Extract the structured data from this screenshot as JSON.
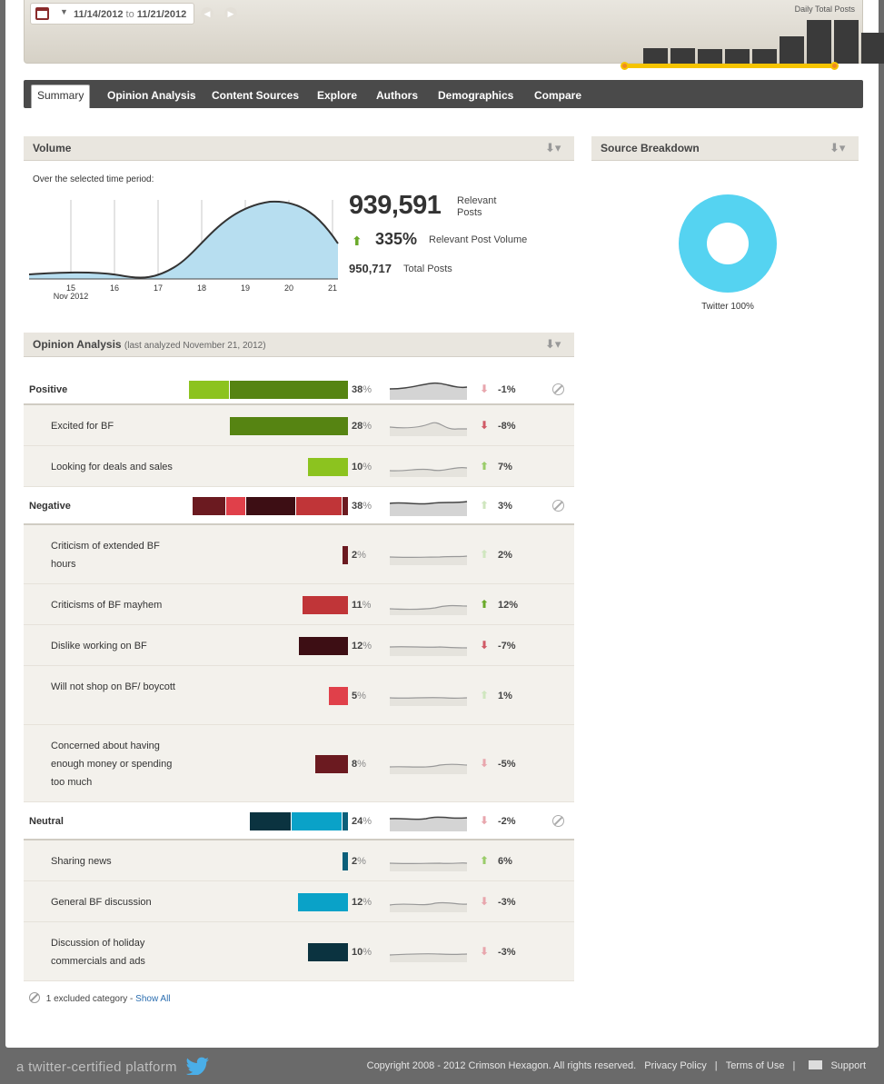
{
  "daterange": {
    "start": "11/14/2012",
    "to": "to",
    "end": "11/21/2012",
    "prev": "◀",
    "next": "▶"
  },
  "daily": {
    "label": "Daily Total Posts",
    "values": [
      16,
      16,
      15,
      15,
      15,
      29,
      46,
      46,
      33
    ]
  },
  "tabs": [
    "Summary",
    "Opinion Analysis",
    "Content Sources",
    "Explore",
    "Authors",
    "Demographics",
    "Compare"
  ],
  "volume": {
    "title": "Volume",
    "subtitle": "Over the selected time period:",
    "relevant_posts": "939,591",
    "relevant_label": "Relevant Posts",
    "change_pct": "335%",
    "change_label": "Relevant Post Volume",
    "total_posts": "950,717",
    "total_label": "Total Posts",
    "x_ticks": [
      "15",
      "16",
      "17",
      "18",
      "19",
      "20",
      "21"
    ],
    "x_sub": "Nov 2012"
  },
  "source": {
    "title": "Source Breakdown",
    "label": "Twitter 100%",
    "color": "#55d3f1"
  },
  "opinion": {
    "title": "Opinion Analysis",
    "subtitle": "(last analyzed November 21, 2012)",
    "rows": [
      {
        "type": "cat",
        "label": "Positive",
        "pct": "38",
        "chg": "-1%",
        "dir": "down-light"
      },
      {
        "type": "sub",
        "label": "Excited for BF",
        "pct": "28",
        "chg": "-8%",
        "dir": "down"
      },
      {
        "type": "sub",
        "label": "Looking for deals and sales",
        "pct": "10",
        "chg": "7%",
        "dir": "up-light"
      },
      {
        "type": "cat",
        "label": "Negative",
        "pct": "38",
        "chg": "3%",
        "dir": "up-faint"
      },
      {
        "type": "sub",
        "label": "Criticism of extended BF hours",
        "pct": "2",
        "chg": "2%",
        "dir": "up-faint"
      },
      {
        "type": "sub",
        "label": "Criticisms of BF mayhem",
        "pct": "11",
        "chg": "12%",
        "dir": "up"
      },
      {
        "type": "sub",
        "label": "Dislike working on BF",
        "pct": "12",
        "chg": "-7%",
        "dir": "down"
      },
      {
        "type": "sub",
        "label": "Will not shop on BF/ boycott",
        "pct": "5",
        "chg": "1%",
        "dir": "up-faint"
      },
      {
        "type": "sub",
        "label": "Concerned about having enough money or spending too much",
        "pct": "8",
        "chg": "-5%",
        "dir": "down-light"
      },
      {
        "type": "cat",
        "label": "Neutral",
        "pct": "24",
        "chg": "-2%",
        "dir": "down-light"
      },
      {
        "type": "sub",
        "label": "Sharing news",
        "pct": "2",
        "chg": "6%",
        "dir": "up-light"
      },
      {
        "type": "sub",
        "label": "General BF discussion",
        "pct": "12",
        "chg": "-3%",
        "dir": "down-light"
      },
      {
        "type": "sub",
        "label": "Discussion of holiday commercials and ads",
        "pct": "10",
        "chg": "-3%",
        "dir": "down-light"
      }
    ],
    "pct_sign": "%",
    "footnote": "1 excluded category - ",
    "show_all": "Show All"
  },
  "colors": {
    "positive": [
      "#8cc31f",
      "#568412"
    ],
    "negative": [
      "#6b1a20",
      "#e0404a",
      "#3d0e14",
      "#c03538",
      "#6b1a20"
    ],
    "neutral": [
      "#0b3340",
      "#0aa2c8",
      "#0b5f7a"
    ]
  },
  "footer": {
    "tagline": "a twitter-certified platform",
    "copyright": "Copyright 2008 - 2012 Crimson Hexagon. All rights reserved.",
    "privacy": "Privacy Policy",
    "sep": "|",
    "terms": "Terms of Use",
    "support": "Support"
  }
}
